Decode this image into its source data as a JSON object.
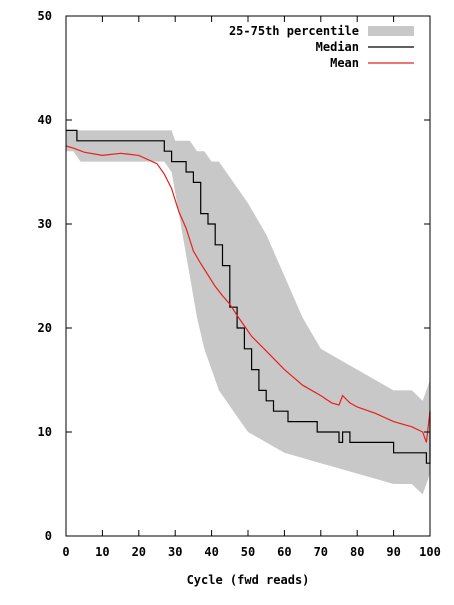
{
  "chart_data": {
    "type": "line",
    "title": "",
    "xlabel": "Cycle (fwd reads)",
    "ylabel": "",
    "xlim": [
      0,
      100
    ],
    "ylim": [
      0,
      50
    ],
    "xticks": [
      0,
      10,
      20,
      30,
      40,
      50,
      60,
      70,
      80,
      90,
      100
    ],
    "yticks": [
      0,
      10,
      20,
      30,
      40,
      50
    ],
    "grid": false,
    "legend_position": "top-right",
    "legend": [
      "25-75th percentile",
      "Median",
      "Mean"
    ],
    "colors": {
      "band": "#c8c8c8",
      "median": "#000000",
      "mean": "#e8201c"
    },
    "band": {
      "name": "25-75th percentile",
      "x": [
        0,
        2,
        4,
        20,
        27,
        29,
        30,
        32,
        34,
        36,
        38,
        40,
        42,
        44,
        46,
        48,
        50,
        55,
        60,
        65,
        70,
        75,
        80,
        85,
        90,
        95,
        98,
        100
      ],
      "lower": [
        37,
        37,
        36,
        36,
        36,
        35,
        33,
        29,
        25,
        21,
        18,
        16,
        14,
        13,
        12,
        11,
        10,
        9,
        8,
        7.5,
        7,
        6.5,
        6,
        5.5,
        5,
        5,
        4,
        6
      ],
      "upper": [
        39,
        39,
        39,
        39,
        39,
        39,
        38,
        38,
        38,
        37,
        37,
        36,
        36,
        35,
        34,
        33,
        32,
        29,
        25,
        21,
        18,
        17,
        16,
        15,
        14,
        14,
        13,
        15
      ]
    },
    "series": [
      {
        "name": "Median",
        "x": [
          0,
          2,
          3,
          25,
          27,
          29,
          31,
          33,
          35,
          37,
          39,
          41,
          43,
          45,
          47,
          49,
          51,
          53,
          55,
          57,
          59,
          61,
          63,
          65,
          67,
          69,
          71,
          74,
          75,
          76,
          77,
          78,
          80,
          85,
          90,
          95,
          98,
          99,
          100
        ],
        "values": [
          39,
          39,
          38,
          38,
          37,
          36,
          36,
          35,
          34,
          31,
          30,
          28,
          26,
          22,
          20,
          18,
          16,
          14,
          13,
          12,
          12,
          11,
          11,
          11,
          11,
          10,
          10,
          10,
          9,
          10,
          10,
          9,
          9,
          9,
          8,
          8,
          8,
          7,
          12
        ]
      },
      {
        "name": "Mean",
        "x": [
          0,
          2,
          5,
          10,
          15,
          20,
          25,
          27,
          29,
          31,
          33,
          35,
          37,
          39,
          41,
          43,
          45,
          47,
          49,
          51,
          55,
          60,
          65,
          70,
          73,
          75,
          76,
          78,
          80,
          85,
          90,
          95,
          98,
          99,
          100
        ],
        "values": [
          37.5,
          37.3,
          36.9,
          36.6,
          36.8,
          36.6,
          35.8,
          34.8,
          33.4,
          31.2,
          29.6,
          27.4,
          26.2,
          25.1,
          24.0,
          23.1,
          22.3,
          21.2,
          20.2,
          19.2,
          17.8,
          16.0,
          14.5,
          13.5,
          12.8,
          12.6,
          13.5,
          12.8,
          12.4,
          11.8,
          11.0,
          10.5,
          10.0,
          9.0,
          12.0
        ]
      }
    ]
  }
}
